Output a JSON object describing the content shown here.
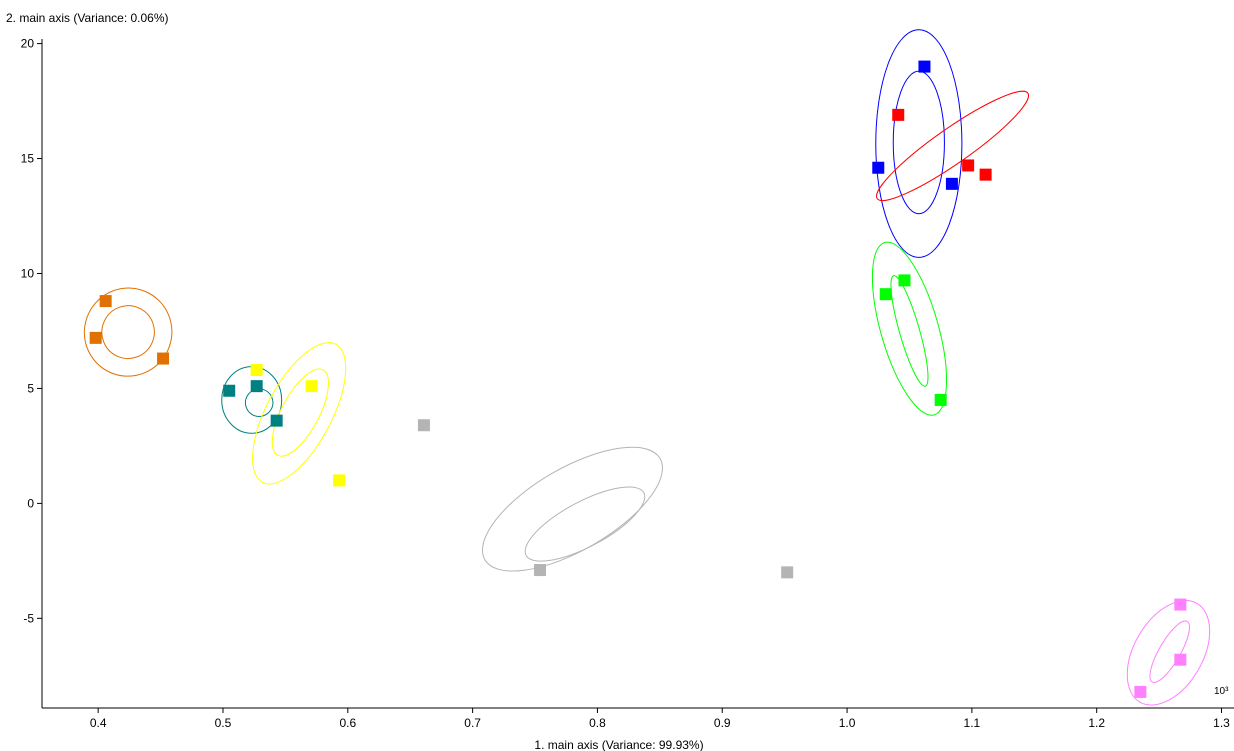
{
  "chart_data": {
    "type": "scatter",
    "title": "",
    "xlabel": "1. main axis (Variance: 99.93%)",
    "ylabel": "2. main axis (Variance: 0.06%)",
    "x_unit_label": "10³",
    "xlim": [
      0.355,
      1.31
    ],
    "ylim": [
      -8.9,
      20.2
    ],
    "x_ticks": [
      0.4,
      0.5,
      0.6,
      0.7,
      0.8,
      0.9,
      1.0,
      1.1,
      1.2,
      1.3
    ],
    "x_tick_labels": [
      "0.4",
      "0.5",
      "0.6",
      "0.7",
      "0.8",
      "0.9",
      "1.0",
      "1.1",
      "1.2",
      "1.3"
    ],
    "y_ticks": [
      20,
      15,
      10,
      5,
      0,
      -5
    ],
    "y_tick_labels": [
      "20",
      "15",
      "10",
      "5",
      "0",
      "-5"
    ],
    "grid": false,
    "legend": "none",
    "series": [
      {
        "color": "#e07000",
        "points": [
          [
            0.406,
            8.8
          ],
          [
            0.398,
            7.2
          ],
          [
            0.452,
            6.3
          ]
        ],
        "ellipses": [
          {
            "cx": 0.424,
            "cy": 7.45,
            "rx": 0.035,
            "ry": 1.92,
            "angle": 25
          },
          {
            "cx": 0.424,
            "cy": 7.45,
            "rx": 0.021,
            "ry": 1.15,
            "angle": 25
          }
        ]
      },
      {
        "color": "#008080",
        "points": [
          [
            0.505,
            4.9
          ],
          [
            0.527,
            5.1
          ],
          [
            0.543,
            3.6
          ]
        ],
        "ellipses": [
          {
            "cx": 0.523,
            "cy": 4.5,
            "rx": 0.024,
            "ry": 1.45,
            "angle": 0
          },
          {
            "cx": 0.529,
            "cy": 4.38,
            "rx": 0.011,
            "ry": 0.6,
            "angle": 30
          }
        ]
      },
      {
        "color": "#ffff00",
        "points": [
          [
            0.527,
            5.8
          ],
          [
            0.571,
            5.1
          ],
          [
            0.593,
            1.0
          ]
        ],
        "ellipses": [
          {
            "cx": 0.561,
            "cy": 3.92,
            "rx": 0.026,
            "ry": 3.4,
            "angle": 28
          },
          {
            "cx": 0.562,
            "cy": 3.95,
            "rx": 0.015,
            "ry": 2.1,
            "angle": 28
          }
        ]
      },
      {
        "color": "#b4b4b4",
        "points": [
          [
            0.661,
            3.4
          ],
          [
            0.754,
            -2.9
          ],
          [
            0.952,
            -3.0
          ]
        ],
        "ellipses": [
          {
            "cx": 0.78,
            "cy": -0.25,
            "rx": 0.033,
            "ry": 4.4,
            "angle": 60
          },
          {
            "cx": 0.79,
            "cy": -0.9,
            "rx": 0.018,
            "ry": 2.9,
            "angle": 62
          }
        ]
      },
      {
        "color": "#0000ff",
        "points": [
          [
            1.062,
            19.0
          ],
          [
            1.025,
            14.6
          ],
          [
            1.084,
            13.9
          ]
        ],
        "ellipses": [
          {
            "cx": 1.0575,
            "cy": 15.65,
            "rx": 0.0345,
            "ry": 4.95,
            "angle": 0
          },
          {
            "cx": 1.0575,
            "cy": 15.7,
            "rx": 0.0205,
            "ry": 3.1,
            "angle": 0
          }
        ]
      },
      {
        "color": "#ff0000",
        "points": [
          [
            1.041,
            16.9
          ],
          [
            1.097,
            14.7
          ],
          [
            1.111,
            14.3
          ]
        ],
        "ellipses": [
          {
            "cx": 1.0845,
            "cy": 15.55,
            "rx": 0.014,
            "ry": 4.0,
            "angle": 55
          }
        ]
      },
      {
        "color": "#00ff00",
        "points": [
          [
            1.031,
            9.1
          ],
          [
            1.046,
            9.7
          ],
          [
            1.075,
            4.5
          ]
        ],
        "ellipses": [
          {
            "cx": 1.05,
            "cy": 7.6,
            "rx": 0.023,
            "ry": 3.9,
            "angle": -16
          },
          {
            "cx": 1.05,
            "cy": 7.5,
            "rx": 0.008,
            "ry": 2.5,
            "angle": -16
          }
        ]
      },
      {
        "color": "#ff80ff",
        "points": [
          [
            1.267,
            -4.4
          ],
          [
            1.267,
            -6.8
          ],
          [
            1.235,
            -8.2
          ]
        ],
        "ellipses": [
          {
            "cx": 1.2575,
            "cy": -6.5,
            "rx": 0.0275,
            "ry": 2.48,
            "angle": 30
          },
          {
            "cx": 1.2585,
            "cy": -6.45,
            "rx": 0.0085,
            "ry": 1.52,
            "angle": 30
          }
        ]
      }
    ]
  }
}
